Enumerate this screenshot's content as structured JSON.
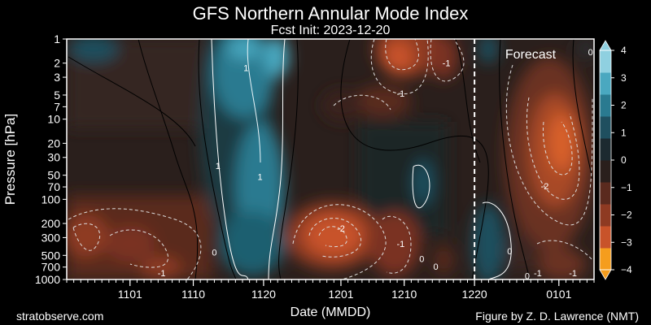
{
  "chart_data": {
    "type": "heatmap",
    "title": "GFS Northern Annular Mode Index",
    "subtitle": "Fcst Init: 2023-12-20",
    "xlabel": "Date (MMDD)",
    "ylabel": "Pressure [hPa]",
    "x_ticks": [
      "1101",
      "1110",
      "1120",
      "1201",
      "1210",
      "1220",
      "0101"
    ],
    "x_tick_day_offsets": [
      31,
      40,
      50,
      61,
      70,
      80,
      92
    ],
    "x_range_days": [
      22,
      97
    ],
    "y_ticks": [
      1,
      2,
      3,
      5,
      7,
      10,
      20,
      30,
      50,
      70,
      100,
      200,
      300,
      500,
      700,
      1000
    ],
    "y_range_hpa": [
      1,
      1000
    ],
    "y_scale": "log",
    "forecast_label": "Forecast",
    "forecast_start_day": 80,
    "colorbar": {
      "ticks": [
        "4",
        "3",
        "2",
        "1",
        "0",
        "−1",
        "−2",
        "−3",
        "−4"
      ],
      "range": [
        -4,
        4
      ],
      "colors_low_to_high": [
        "#f59d1d",
        "#c8532a",
        "#8e3a22",
        "#5a2a1e",
        "#2a1f1c",
        "#1c2a30",
        "#1f4f5f",
        "#2a7a90",
        "#4aa8c0",
        "#8fd0e0"
      ]
    },
    "contour_labels": [
      {
        "text": "1",
        "day": 47.5,
        "hpa": 2.3
      },
      {
        "text": "1",
        "day": 43.5,
        "hpa": 38
      },
      {
        "text": "1",
        "day": 49.5,
        "hpa": 52
      },
      {
        "text": "0",
        "day": 43,
        "hpa": 460
      },
      {
        "text": "-1",
        "day": 35.5,
        "hpa": 830
      },
      {
        "text": "-1",
        "day": 69.5,
        "hpa": 4.8
      },
      {
        "text": "-1",
        "day": 76,
        "hpa": 2.0
      },
      {
        "text": "-2",
        "day": 61,
        "hpa": 230
      },
      {
        "text": "-1",
        "day": 69.5,
        "hpa": 360
      },
      {
        "text": "0",
        "day": 72.5,
        "hpa": 550
      },
      {
        "text": "0",
        "day": 74.5,
        "hpa": 690
      },
      {
        "text": "0",
        "day": 85,
        "hpa": 440
      },
      {
        "text": "0",
        "day": 96.5,
        "hpa": 1.45
      },
      {
        "text": "-2",
        "day": 90,
        "hpa": 68
      },
      {
        "text": "0",
        "day": 87.5,
        "hpa": 900
      },
      {
        "text": "-1",
        "day": 89,
        "hpa": 830
      },
      {
        "text": "-1",
        "day": 94,
        "hpa": 830
      }
    ]
  },
  "footer": {
    "left": "stratobserve.com",
    "right": "Figure by Z. D. Lawrence (NMT)"
  }
}
